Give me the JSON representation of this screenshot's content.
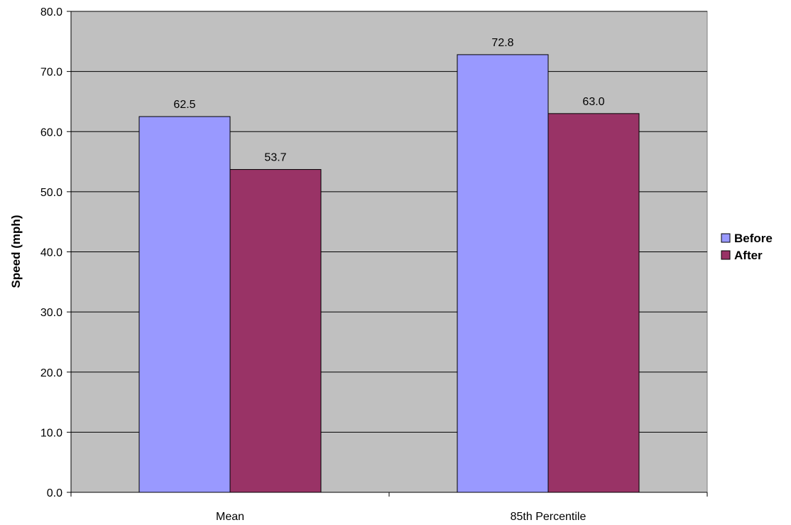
{
  "chart_data": {
    "type": "bar",
    "categories": [
      "Mean",
      "85th Percentile"
    ],
    "series": [
      {
        "name": "Before",
        "values": [
          62.5,
          72.8
        ],
        "labels": [
          "62.5",
          "72.8"
        ],
        "color": "#9999FF"
      },
      {
        "name": "After",
        "values": [
          53.7,
          63.0
        ],
        "labels": [
          "53.7",
          "63.0"
        ],
        "color": "#993366"
      }
    ],
    "title": "",
    "xlabel": "",
    "ylabel": "Speed (mph)",
    "ylim": [
      0,
      80
    ],
    "yticks": [
      "0.0",
      "10.0",
      "20.0",
      "30.0",
      "40.0",
      "50.0",
      "60.0",
      "70.0",
      "80.0"
    ],
    "grid": true,
    "legend": "right",
    "plot_background": "#C0C0C0"
  }
}
